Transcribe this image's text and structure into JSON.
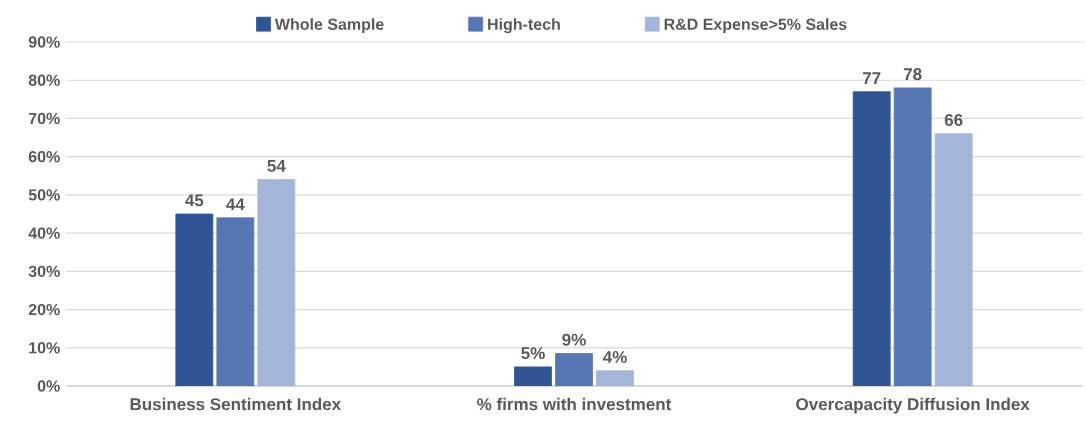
{
  "chart_data": {
    "type": "bar",
    "categories": [
      "Business Sentiment Index",
      "% firms with investment",
      "Overcapacity Diffusion Index"
    ],
    "series": [
      {
        "name": "Whole Sample",
        "color": "#2f5597",
        "values": [
          45,
          5,
          77
        ],
        "value_labels": [
          "45",
          "5%",
          "77"
        ]
      },
      {
        "name": "High-tech",
        "color": "#5677b3",
        "values": [
          44,
          8.5,
          78
        ],
        "value_labels": [
          "44",
          "9%",
          "78"
        ]
      },
      {
        "name": "R&D Expense>5% Sales",
        "color": "#a3b6d9",
        "values": [
          54,
          4,
          66
        ],
        "value_labels": [
          "54",
          "4%",
          "66"
        ]
      }
    ],
    "ylim": [
      0,
      90
    ],
    "yticks": [
      {
        "value": 0,
        "label": "0%"
      },
      {
        "value": 10,
        "label": "10%"
      },
      {
        "value": 20,
        "label": "20%"
      },
      {
        "value": 30,
        "label": "30%"
      },
      {
        "value": 40,
        "label": "40%"
      },
      {
        "value": 50,
        "label": "50%"
      },
      {
        "value": 60,
        "label": "60%"
      },
      {
        "value": 70,
        "label": "70%"
      },
      {
        "value": 80,
        "label": "80%"
      },
      {
        "value": 90,
        "label": "90%"
      }
    ],
    "grid": "y",
    "legend": "top"
  }
}
